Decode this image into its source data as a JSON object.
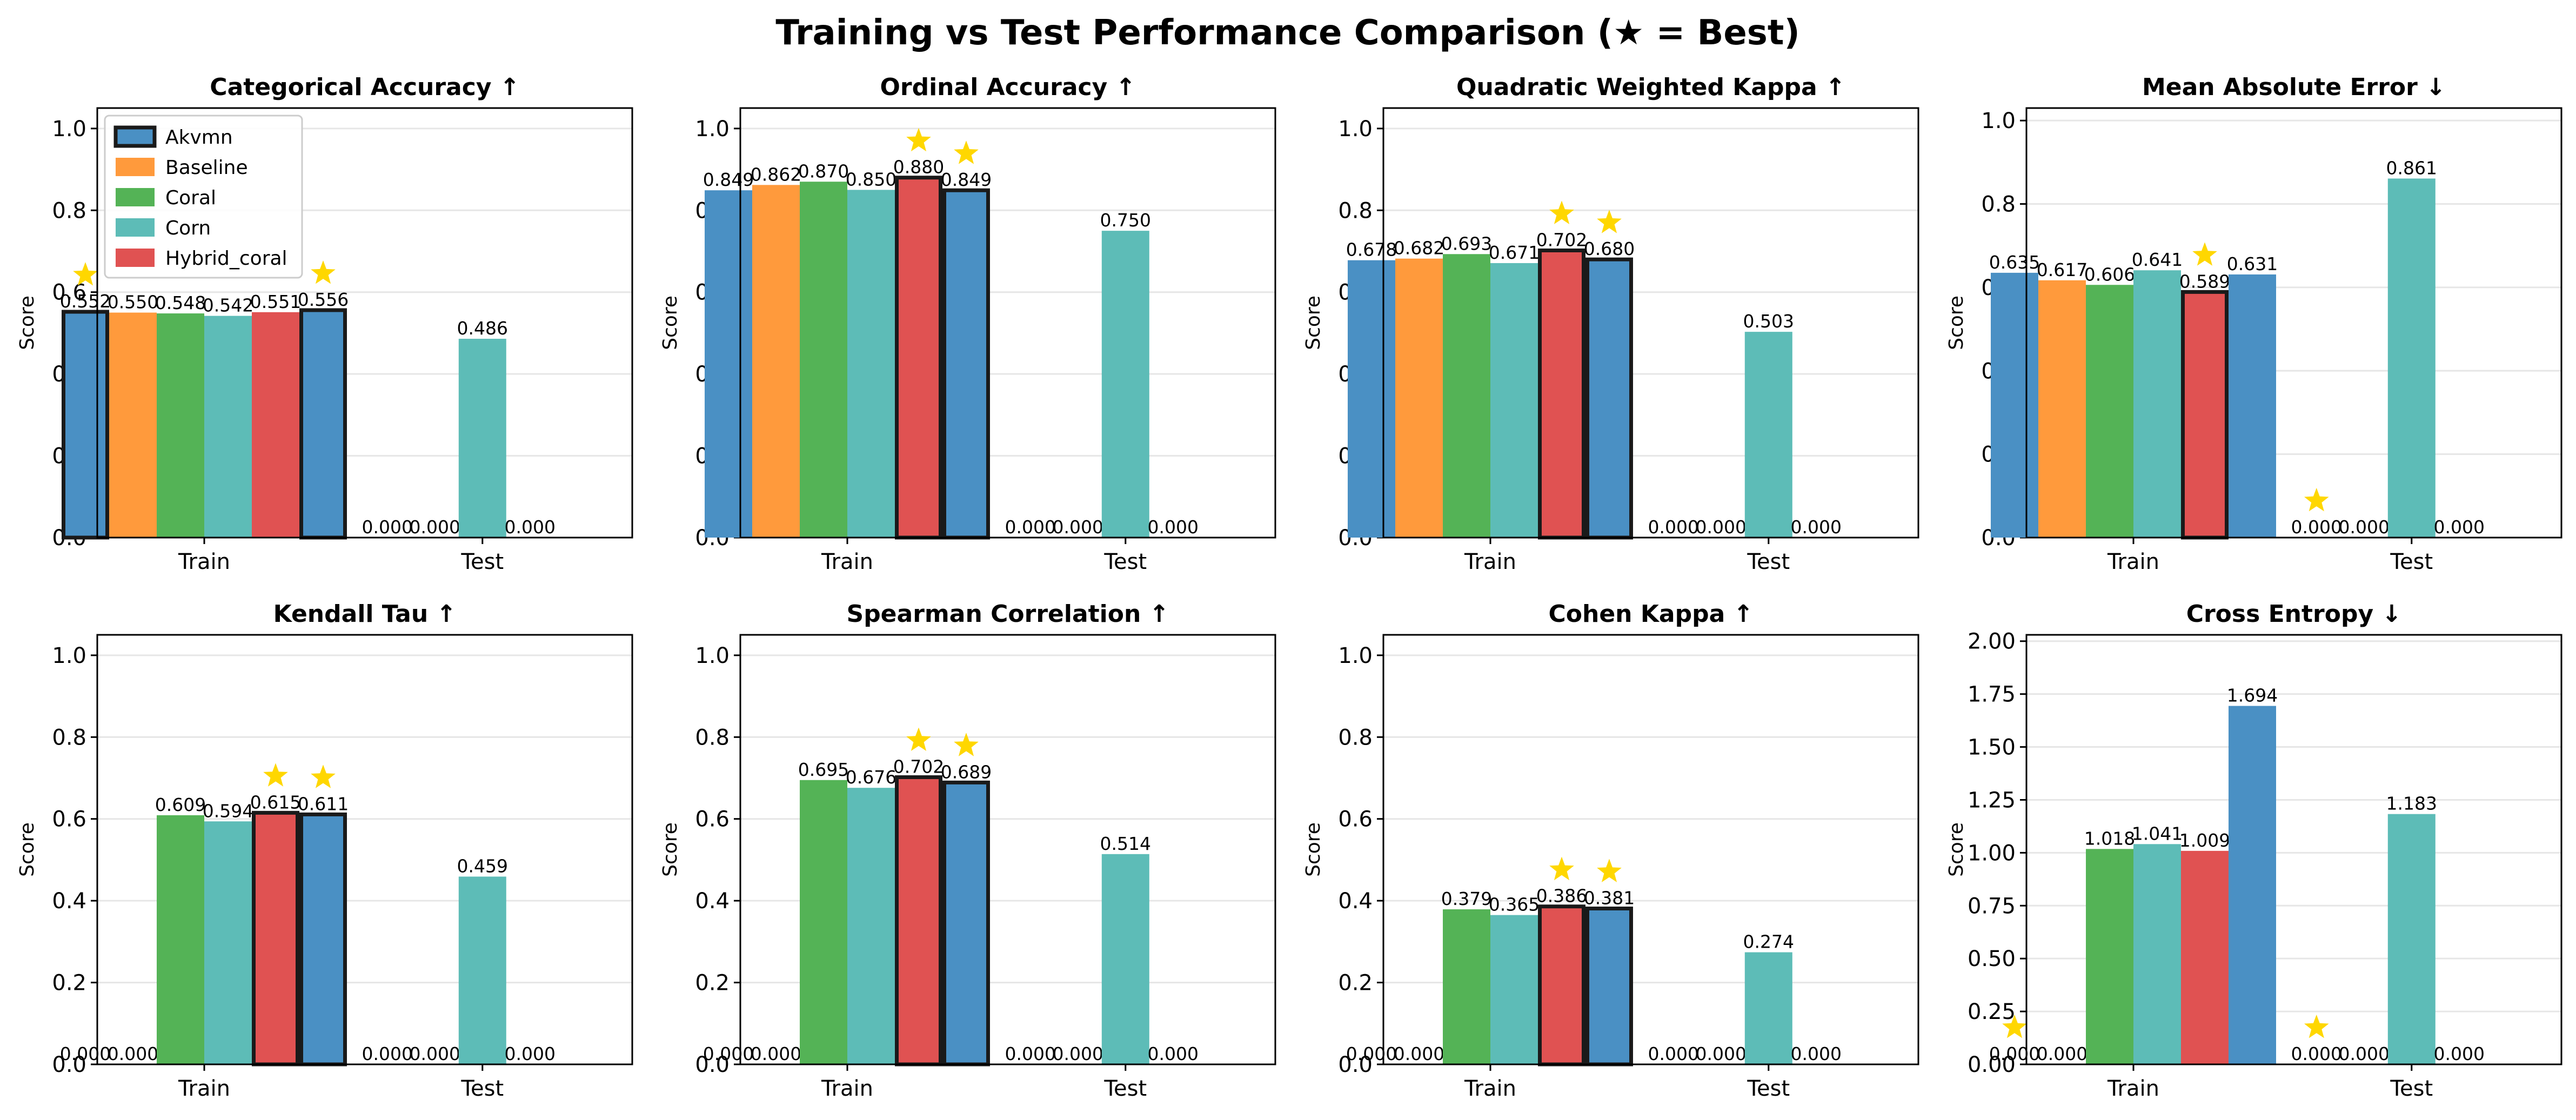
{
  "title": "Training vs Test Performance Comparison (★ = Best)",
  "series_colors": {
    "Akvmn": "#4a90c4",
    "Baseline": "#ff9a3c",
    "Coral": "#54b356",
    "Corn": "#5dbcb7",
    "Hybrid_coral": "#e05252"
  },
  "legend": [
    "Akvmn",
    "Baseline",
    "Coral",
    "Corn",
    "Hybrid_coral"
  ],
  "chart_data": [
    {
      "type": "bar",
      "title": "Categorical Accuracy ↑",
      "ylabel": "Score",
      "categories": [
        "Train",
        "Test"
      ],
      "ylim": [
        0,
        1.05
      ],
      "yticks": [
        "0.0",
        "0.2",
        "0.4",
        "0.6",
        "0.8",
        "1.0"
      ],
      "show_legend": true,
      "bars": [
        {
          "group": "Train",
          "series": "Akvmn",
          "value": 0.552,
          "label": "0.552",
          "highlight": true,
          "star": true
        },
        {
          "group": "Train",
          "series": "Baseline",
          "value": 0.55,
          "label": "0.550"
        },
        {
          "group": "Train",
          "series": "Coral",
          "value": 0.548,
          "label": "0.548"
        },
        {
          "group": "Train",
          "series": "Corn",
          "value": 0.542,
          "label": "0.542"
        },
        {
          "group": "Train",
          "series": "Hybrid_coral",
          "value": 0.551,
          "label": "0.551"
        },
        {
          "group": "Train",
          "series": "Akvmn",
          "value": 0.556,
          "label": "0.556",
          "highlight": true,
          "star": true
        },
        {
          "group": "Test",
          "series": "Akvmn",
          "value": 0.0,
          "label": "0.000"
        },
        {
          "group": "Test",
          "series": "Baseline",
          "value": 0.0,
          "label": "0.000"
        },
        {
          "group": "Test",
          "series": "Corn",
          "value": 0.486,
          "label": "0.486"
        },
        {
          "group": "Test",
          "series": "Hybrid_coral",
          "value": 0.0,
          "label": "0.000"
        }
      ]
    },
    {
      "type": "bar",
      "title": "Ordinal Accuracy ↑",
      "ylabel": "Score",
      "categories": [
        "Train",
        "Test"
      ],
      "ylim": [
        0,
        1.05
      ],
      "yticks": [
        "0.0",
        "0.2",
        "0.4",
        "0.6",
        "0.8",
        "1.0"
      ],
      "bars": [
        {
          "group": "Train",
          "series": "Akvmn",
          "value": 0.849,
          "label": "0.849"
        },
        {
          "group": "Train",
          "series": "Baseline",
          "value": 0.862,
          "label": "0.862"
        },
        {
          "group": "Train",
          "series": "Coral",
          "value": 0.87,
          "label": "0.870"
        },
        {
          "group": "Train",
          "series": "Corn",
          "value": 0.85,
          "label": "0.850"
        },
        {
          "group": "Train",
          "series": "Hybrid_coral",
          "value": 0.88,
          "label": "0.880",
          "highlight": true,
          "star": true
        },
        {
          "group": "Train",
          "series": "Akvmn",
          "value": 0.849,
          "label": "0.849",
          "highlight": true,
          "star": true
        },
        {
          "group": "Test",
          "series": "Akvmn",
          "value": 0.0,
          "label": "0.000"
        },
        {
          "group": "Test",
          "series": "Baseline",
          "value": 0.0,
          "label": "0.000"
        },
        {
          "group": "Test",
          "series": "Corn",
          "value": 0.75,
          "label": "0.750"
        },
        {
          "group": "Test",
          "series": "Hybrid_coral",
          "value": 0.0,
          "label": "0.000"
        }
      ]
    },
    {
      "type": "bar",
      "title": "Quadratic Weighted Kappa ↑",
      "ylabel": "Score",
      "categories": [
        "Train",
        "Test"
      ],
      "ylim": [
        0,
        1.05
      ],
      "yticks": [
        "0.0",
        "0.2",
        "0.4",
        "0.6",
        "0.8",
        "1.0"
      ],
      "bars": [
        {
          "group": "Train",
          "series": "Akvmn",
          "value": 0.678,
          "label": "0.678"
        },
        {
          "group": "Train",
          "series": "Baseline",
          "value": 0.682,
          "label": "0.682"
        },
        {
          "group": "Train",
          "series": "Coral",
          "value": 0.693,
          "label": "0.693"
        },
        {
          "group": "Train",
          "series": "Corn",
          "value": 0.671,
          "label": "0.671"
        },
        {
          "group": "Train",
          "series": "Hybrid_coral",
          "value": 0.702,
          "label": "0.702",
          "highlight": true,
          "star": true
        },
        {
          "group": "Train",
          "series": "Akvmn",
          "value": 0.68,
          "label": "0.680",
          "highlight": true,
          "star": true
        },
        {
          "group": "Test",
          "series": "Akvmn",
          "value": 0.0,
          "label": "0.000"
        },
        {
          "group": "Test",
          "series": "Baseline",
          "value": 0.0,
          "label": "0.000"
        },
        {
          "group": "Test",
          "series": "Corn",
          "value": 0.503,
          "label": "0.503"
        },
        {
          "group": "Test",
          "series": "Hybrid_coral",
          "value": 0.0,
          "label": "0.000"
        }
      ]
    },
    {
      "type": "bar",
      "title": "Mean Absolute Error ↓",
      "ylabel": "Score",
      "categories": [
        "Train",
        "Test"
      ],
      "ylim": [
        0,
        1.03
      ],
      "yticks": [
        "0.0",
        "0.2",
        "0.4",
        "0.6",
        "0.8",
        "1.0"
      ],
      "bars": [
        {
          "group": "Train",
          "series": "Akvmn",
          "value": 0.635,
          "label": "0.635"
        },
        {
          "group": "Train",
          "series": "Baseline",
          "value": 0.617,
          "label": "0.617"
        },
        {
          "group": "Train",
          "series": "Coral",
          "value": 0.606,
          "label": "0.606"
        },
        {
          "group": "Train",
          "series": "Corn",
          "value": 0.641,
          "label": "0.641"
        },
        {
          "group": "Train",
          "series": "Hybrid_coral",
          "value": 0.589,
          "label": "0.589",
          "highlight": true,
          "star": true
        },
        {
          "group": "Train",
          "series": "Akvmn",
          "value": 0.631,
          "label": "0.631"
        },
        {
          "group": "Test",
          "series": "Akvmn",
          "value": 0.0,
          "label": "0.000",
          "star": true
        },
        {
          "group": "Test",
          "series": "Baseline",
          "value": 0.0,
          "label": "0.000"
        },
        {
          "group": "Test",
          "series": "Corn",
          "value": 0.861,
          "label": "0.861"
        },
        {
          "group": "Test",
          "series": "Hybrid_coral",
          "value": 0.0,
          "label": "0.000"
        }
      ]
    },
    {
      "type": "bar",
      "title": "Kendall Tau ↑",
      "ylabel": "Score",
      "categories": [
        "Train",
        "Test"
      ],
      "ylim": [
        0,
        1.05
      ],
      "yticks": [
        "0.0",
        "0.2",
        "0.4",
        "0.6",
        "0.8",
        "1.0"
      ],
      "bars": [
        {
          "group": "Train",
          "series": "Akvmn",
          "value": 0.0,
          "label": "0.000"
        },
        {
          "group": "Train",
          "series": "Baseline",
          "value": 0.0,
          "label": "0.000"
        },
        {
          "group": "Train",
          "series": "Coral",
          "value": 0.609,
          "label": "0.609"
        },
        {
          "group": "Train",
          "series": "Corn",
          "value": 0.594,
          "label": "0.594"
        },
        {
          "group": "Train",
          "series": "Hybrid_coral",
          "value": 0.615,
          "label": "0.615",
          "highlight": true,
          "star": true
        },
        {
          "group": "Train",
          "series": "Akvmn",
          "value": 0.611,
          "label": "0.611",
          "highlight": true,
          "star": true
        },
        {
          "group": "Test",
          "series": "Akvmn",
          "value": 0.0,
          "label": "0.000"
        },
        {
          "group": "Test",
          "series": "Baseline",
          "value": 0.0,
          "label": "0.000"
        },
        {
          "group": "Test",
          "series": "Corn",
          "value": 0.459,
          "label": "0.459"
        },
        {
          "group": "Test",
          "series": "Hybrid_coral",
          "value": 0.0,
          "label": "0.000"
        }
      ]
    },
    {
      "type": "bar",
      "title": "Spearman Correlation ↑",
      "ylabel": "Score",
      "categories": [
        "Train",
        "Test"
      ],
      "ylim": [
        0,
        1.05
      ],
      "yticks": [
        "0.0",
        "0.2",
        "0.4",
        "0.6",
        "0.8",
        "1.0"
      ],
      "bars": [
        {
          "group": "Train",
          "series": "Akvmn",
          "value": 0.0,
          "label": "0.000"
        },
        {
          "group": "Train",
          "series": "Baseline",
          "value": 0.0,
          "label": "0.000"
        },
        {
          "group": "Train",
          "series": "Coral",
          "value": 0.695,
          "label": "0.695"
        },
        {
          "group": "Train",
          "series": "Corn",
          "value": 0.676,
          "label": "0.676"
        },
        {
          "group": "Train",
          "series": "Hybrid_coral",
          "value": 0.702,
          "label": "0.702",
          "highlight": true,
          "star": true
        },
        {
          "group": "Train",
          "series": "Akvmn",
          "value": 0.689,
          "label": "0.689",
          "highlight": true,
          "star": true
        },
        {
          "group": "Test",
          "series": "Akvmn",
          "value": 0.0,
          "label": "0.000"
        },
        {
          "group": "Test",
          "series": "Baseline",
          "value": 0.0,
          "label": "0.000"
        },
        {
          "group": "Test",
          "series": "Corn",
          "value": 0.514,
          "label": "0.514"
        },
        {
          "group": "Test",
          "series": "Hybrid_coral",
          "value": 0.0,
          "label": "0.000"
        }
      ]
    },
    {
      "type": "bar",
      "title": "Cohen Kappa ↑",
      "ylabel": "Score",
      "categories": [
        "Train",
        "Test"
      ],
      "ylim": [
        0,
        1.05
      ],
      "yticks": [
        "0.0",
        "0.2",
        "0.4",
        "0.6",
        "0.8",
        "1.0"
      ],
      "bars": [
        {
          "group": "Train",
          "series": "Akvmn",
          "value": 0.0,
          "label": "0.000"
        },
        {
          "group": "Train",
          "series": "Baseline",
          "value": 0.0,
          "label": "0.000"
        },
        {
          "group": "Train",
          "series": "Coral",
          "value": 0.379,
          "label": "0.379"
        },
        {
          "group": "Train",
          "series": "Corn",
          "value": 0.365,
          "label": "0.365"
        },
        {
          "group": "Train",
          "series": "Hybrid_coral",
          "value": 0.386,
          "label": "0.386",
          "highlight": true,
          "star": true
        },
        {
          "group": "Train",
          "series": "Akvmn",
          "value": 0.381,
          "label": "0.381",
          "highlight": true,
          "star": true
        },
        {
          "group": "Test",
          "series": "Akvmn",
          "value": 0.0,
          "label": "0.000"
        },
        {
          "group": "Test",
          "series": "Baseline",
          "value": 0.0,
          "label": "0.000"
        },
        {
          "group": "Test",
          "series": "Corn",
          "value": 0.274,
          "label": "0.274"
        },
        {
          "group": "Test",
          "series": "Hybrid_coral",
          "value": 0.0,
          "label": "0.000"
        }
      ]
    },
    {
      "type": "bar",
      "title": "Cross Entropy ↓",
      "ylabel": "Score",
      "categories": [
        "Train",
        "Test"
      ],
      "ylim": [
        0,
        2.03
      ],
      "yticks": [
        "0.00",
        "0.25",
        "0.50",
        "0.75",
        "1.00",
        "1.25",
        "1.50",
        "1.75",
        "2.00"
      ],
      "bars": [
        {
          "group": "Train",
          "series": "Akvmn",
          "value": 0.0,
          "label": "0.000",
          "star": true
        },
        {
          "group": "Train",
          "series": "Baseline",
          "value": 0.0,
          "label": "0.000"
        },
        {
          "group": "Train",
          "series": "Coral",
          "value": 1.018,
          "label": "1.018"
        },
        {
          "group": "Train",
          "series": "Corn",
          "value": 1.041,
          "label": "1.041"
        },
        {
          "group": "Train",
          "series": "Hybrid_coral",
          "value": 1.009,
          "label": "1.009"
        },
        {
          "group": "Train",
          "series": "Akvmn",
          "value": 1.694,
          "label": "1.694"
        },
        {
          "group": "Test",
          "series": "Akvmn",
          "value": 0.0,
          "label": "0.000",
          "star": true
        },
        {
          "group": "Test",
          "series": "Baseline",
          "value": 0.0,
          "label": "0.000"
        },
        {
          "group": "Test",
          "series": "Corn",
          "value": 1.183,
          "label": "1.183"
        },
        {
          "group": "Test",
          "series": "Hybrid_coral",
          "value": 0.0,
          "label": "0.000"
        }
      ]
    }
  ]
}
